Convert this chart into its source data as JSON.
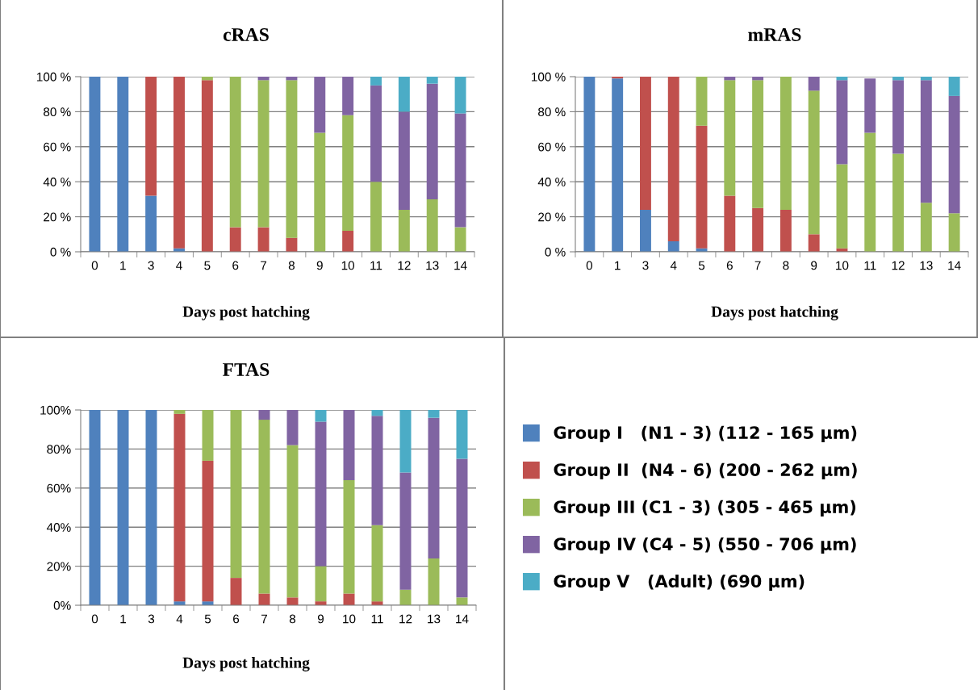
{
  "chart_data": [
    {
      "type": "bar",
      "stacked": true,
      "title": "cRAS",
      "xlabel": "Days post hatching",
      "grid": "y",
      "legend": false,
      "categories": [
        "0",
        "1",
        "3",
        "4",
        "5",
        "6",
        "7",
        "8",
        "9",
        "10",
        "11",
        "12",
        "13",
        "14"
      ],
      "ylim": [
        0,
        100
      ],
      "yticks": [
        {
          "value": 0,
          "label": "0 %"
        },
        {
          "value": 20,
          "label": "20 %"
        },
        {
          "value": 40,
          "label": "40 %"
        },
        {
          "value": 60,
          "label": "60 %"
        },
        {
          "value": 80,
          "label": "80 %"
        },
        {
          "value": 100,
          "label": "100 %"
        }
      ],
      "series": [
        {
          "color": "#4f81bd",
          "values": [
            100,
            100,
            32,
            2,
            0,
            0,
            0,
            0,
            0,
            0,
            0,
            0,
            0,
            0
          ]
        },
        {
          "color": "#c0504d",
          "values": [
            0,
            0,
            68,
            98,
            98,
            14,
            14,
            8,
            0,
            12,
            0,
            0,
            0,
            0
          ]
        },
        {
          "color": "#9bbb59",
          "values": [
            0,
            0,
            0,
            0,
            2,
            86,
            84,
            90,
            68,
            66,
            40,
            24,
            30,
            14
          ]
        },
        {
          "color": "#8064a2",
          "values": [
            0,
            0,
            0,
            0,
            0,
            0,
            2,
            2,
            32,
            22,
            55,
            56,
            66,
            65
          ]
        },
        {
          "color": "#4bacc6",
          "values": [
            0,
            0,
            0,
            0,
            0,
            0,
            0,
            0,
            0,
            0,
            5,
            20,
            4,
            21
          ]
        }
      ]
    },
    {
      "type": "bar",
      "stacked": true,
      "title": "mRAS",
      "xlabel": "Days post hatching",
      "grid": "y",
      "legend": false,
      "categories": [
        "0",
        "1",
        "3",
        "4",
        "5",
        "6",
        "7",
        "8",
        "9",
        "10",
        "11",
        "12",
        "13",
        "14"
      ],
      "ylim": [
        0,
        100
      ],
      "yticks": [
        {
          "value": 0,
          "label": "0 %"
        },
        {
          "value": 20,
          "label": "20 %"
        },
        {
          "value": 40,
          "label": "40 %"
        },
        {
          "value": 60,
          "label": "60 %"
        },
        {
          "value": 80,
          "label": "80 %"
        },
        {
          "value": 100,
          "label": "100 %"
        }
      ],
      "series": [
        {
          "color": "#4f81bd",
          "values": [
            100,
            99,
            24,
            6,
            2,
            0,
            0,
            0,
            0,
            0,
            0,
            0,
            0,
            0
          ]
        },
        {
          "color": "#c0504d",
          "values": [
            0,
            1,
            76,
            94,
            70,
            32,
            25,
            24,
            10,
            2,
            null,
            0,
            0,
            0
          ]
        },
        {
          "color": "#9bbb59",
          "values": [
            0,
            0,
            0,
            0,
            28,
            66,
            73,
            76,
            82,
            48,
            68,
            56,
            28,
            22
          ]
        },
        {
          "color": "#8064a2",
          "values": [
            0,
            0,
            0,
            0,
            0,
            2,
            2,
            0,
            8,
            48,
            31,
            42,
            70,
            67
          ]
        },
        {
          "color": "#4bacc6",
          "values": [
            0,
            0,
            0,
            0,
            0,
            0,
            0,
            0,
            0,
            2,
            0,
            2,
            2,
            11
          ]
        }
      ]
    },
    {
      "type": "bar",
      "stacked": true,
      "title": "FTAS",
      "xlabel": "Days post hatching",
      "grid": "y",
      "legend": "right",
      "categories": [
        "0",
        "1",
        "3",
        "4",
        "5",
        "6",
        "7",
        "8",
        "9",
        "10",
        "11",
        "12",
        "13",
        "14"
      ],
      "ylim": [
        0,
        100
      ],
      "yticks": [
        {
          "value": 0,
          "label": "0%"
        },
        {
          "value": 20,
          "label": "20%"
        },
        {
          "value": 40,
          "label": "40%"
        },
        {
          "value": 60,
          "label": "60%"
        },
        {
          "value": 80,
          "label": "80%"
        },
        {
          "value": 100,
          "label": "100%"
        }
      ],
      "series": [
        {
          "name": "Group I   (N1 - 3) (112 - 165 µm)",
          "color": "#4f81bd",
          "values": [
            100,
            100,
            100,
            2,
            2,
            0,
            0,
            0,
            0,
            0,
            0,
            0,
            0,
            0
          ]
        },
        {
          "name": "Group II  (N4 - 6) (200 - 262 µm)",
          "color": "#c0504d",
          "values": [
            0,
            0,
            0,
            96,
            72,
            14,
            6,
            4,
            2,
            6,
            2,
            0,
            0,
            0
          ]
        },
        {
          "name": "Group III (C1 - 3) (305 - 465 µm)",
          "color": "#9bbb59",
          "values": [
            0,
            0,
            0,
            2,
            26,
            86,
            89,
            78,
            18,
            58,
            39,
            8,
            24,
            4
          ]
        },
        {
          "name": "Group IV (C4 - 5) (550 - 706 µm)",
          "color": "#8064a2",
          "values": [
            0,
            0,
            0,
            0,
            0,
            0,
            5,
            18,
            74,
            36,
            56,
            60,
            72,
            71
          ]
        },
        {
          "name": "Group V   (Adult) (690 µm)",
          "color": "#4bacc6",
          "values": [
            0,
            0,
            0,
            0,
            0,
            0,
            0,
            0,
            6,
            0,
            3,
            32,
            4,
            25
          ]
        }
      ]
    }
  ]
}
